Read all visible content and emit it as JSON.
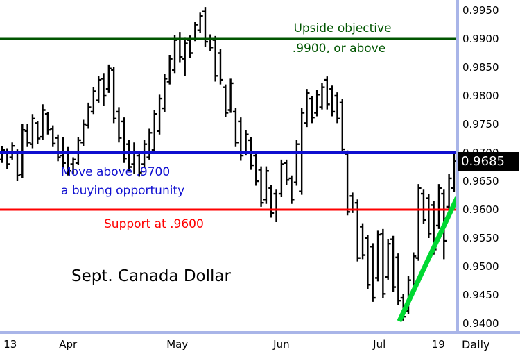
{
  "chart_data": {
    "type": "ohlc_bar",
    "title": "Sept. Canada Dollar",
    "timeframe_label": "Daily",
    "last_price": 0.9685,
    "last_price_label": "0.9685",
    "colors": {
      "bars": "#000000",
      "axis_frame": "#a9b5e8",
      "price_tag_bg": "#000000",
      "price_tag_text": "#ffffff",
      "background": "#ffffff"
    },
    "y_axis": {
      "min": 0.94,
      "max": 0.995,
      "step": 0.005,
      "tick_labels": [
        "0.9950",
        "0.9900",
        "0.9850",
        "0.9800",
        "0.9750",
        "0.9700",
        "0.9650",
        "0.9600",
        "0.9550",
        "0.9500",
        "0.9450",
        "0.9400"
      ]
    },
    "x_axis": {
      "tick_labels": [
        {
          "text": "13",
          "bar": 1.6
        },
        {
          "text": "Apr",
          "bar": 13.0
        },
        {
          "text": "May",
          "bar": 34.5
        },
        {
          "text": "Jun",
          "bar": 55.0
        },
        {
          "text": "Jul",
          "bar": 74.3
        },
        {
          "text": "19",
          "bar": 85.9
        }
      ]
    },
    "levels": [
      {
        "id": "upside-objective",
        "price": 0.99,
        "color": "#005500",
        "stroke": 3,
        "annotation": {
          "lines": [
            "Upside objective",
            ".9900, or above"
          ]
        }
      },
      {
        "id": "buy-trigger",
        "price": 0.97,
        "color": "#0f0fd0",
        "stroke": 4,
        "annotation": {
          "lines": [
            "Move above .9700",
            "a buying opportunity"
          ]
        }
      },
      {
        "id": "support",
        "price": 0.96,
        "color": "#ff0000",
        "stroke": 3,
        "annotation": {
          "lines": [
            "Support at .9600"
          ]
        }
      }
    ],
    "trend_line": {
      "from_bar": 78.2,
      "from_price": 0.9404,
      "to_bar": 89.6,
      "to_price": 0.9621,
      "color": "#00d832",
      "stroke": 7
    },
    "bars": [
      [
        0.9712,
        0.9682,
        0.9688,
        0.9705
      ],
      [
        0.9708,
        0.9672,
        0.97,
        0.968
      ],
      [
        0.9718,
        0.9688,
        0.9692,
        0.9712
      ],
      [
        0.9706,
        0.965,
        0.97,
        0.966
      ],
      [
        0.975,
        0.9655,
        0.9662,
        0.974
      ],
      [
        0.975,
        0.971,
        0.9738,
        0.9718
      ],
      [
        0.9768,
        0.9708,
        0.9715,
        0.976
      ],
      [
        0.9755,
        0.9715,
        0.9752,
        0.9725
      ],
      [
        0.9785,
        0.9722,
        0.9728,
        0.9775
      ],
      [
        0.9772,
        0.9732,
        0.9768,
        0.974
      ],
      [
        0.9748,
        0.971,
        0.9742,
        0.9716
      ],
      [
        0.9732,
        0.9685,
        0.9726,
        0.9692
      ],
      [
        0.9728,
        0.9675,
        0.9695,
        0.9682
      ],
      [
        0.971,
        0.966,
        0.97,
        0.9668
      ],
      [
        0.9692,
        0.9662,
        0.968,
        0.9688
      ],
      [
        0.9728,
        0.9678,
        0.9682,
        0.9722
      ],
      [
        0.9758,
        0.9712,
        0.9718,
        0.975
      ],
      [
        0.9788,
        0.9742,
        0.9748,
        0.978
      ],
      [
        0.9815,
        0.9768,
        0.9772,
        0.9808
      ],
      [
        0.9835,
        0.9788,
        0.9792,
        0.9828
      ],
      [
        0.984,
        0.9782,
        0.983,
        0.98
      ],
      [
        0.9855,
        0.9805,
        0.9812,
        0.9848
      ],
      [
        0.985,
        0.9752,
        0.9845,
        0.976
      ],
      [
        0.978,
        0.9718,
        0.9772,
        0.9726
      ],
      [
        0.9762,
        0.9682,
        0.9755,
        0.969
      ],
      [
        0.9722,
        0.9668,
        0.9715,
        0.9675
      ],
      [
        0.9718,
        0.9663,
        0.968,
        0.97
      ],
      [
        0.97,
        0.9658,
        0.9695,
        0.9665
      ],
      [
        0.9722,
        0.9675,
        0.968,
        0.9715
      ],
      [
        0.9742,
        0.9688,
        0.9692,
        0.9735
      ],
      [
        0.9775,
        0.97,
        0.9705,
        0.9768
      ],
      [
        0.9802,
        0.9732,
        0.9738,
        0.9795
      ],
      [
        0.9838,
        0.9772,
        0.9778,
        0.983
      ],
      [
        0.9872,
        0.982,
        0.9825,
        0.9865
      ],
      [
        0.9907,
        0.984,
        0.9845,
        0.9898
      ],
      [
        0.9912,
        0.9858,
        0.99,
        0.9868
      ],
      [
        0.9902,
        0.9835,
        0.9865,
        0.9892
      ],
      [
        0.9906,
        0.9866,
        0.9898,
        0.9875
      ],
      [
        0.993,
        0.9896,
        0.99,
        0.9925
      ],
      [
        0.9946,
        0.991,
        0.9915,
        0.994
      ],
      [
        0.9956,
        0.9886,
        0.9948,
        0.9895
      ],
      [
        0.9908,
        0.9878,
        0.99,
        0.9885
      ],
      [
        0.9905,
        0.9825,
        0.9898,
        0.9835
      ],
      [
        0.9882,
        0.982,
        0.9875,
        0.9828
      ],
      [
        0.982,
        0.9763,
        0.9815,
        0.977
      ],
      [
        0.983,
        0.977,
        0.9775,
        0.9822
      ],
      [
        0.9778,
        0.971,
        0.9772,
        0.9718
      ],
      [
        0.9762,
        0.9686,
        0.9755,
        0.9695
      ],
      [
        0.974,
        0.9695,
        0.97,
        0.9732
      ],
      [
        0.9728,
        0.967,
        0.9722,
        0.9678
      ],
      [
        0.97,
        0.9642,
        0.9695,
        0.965
      ],
      [
        0.9676,
        0.9605,
        0.967,
        0.9612
      ],
      [
        0.9676,
        0.961,
        0.9618,
        0.9668
      ],
      [
        0.9643,
        0.9586,
        0.9638,
        0.9594
      ],
      [
        0.9635,
        0.9578,
        0.9628,
        0.96
      ],
      [
        0.9688,
        0.9622,
        0.9628,
        0.968
      ],
      [
        0.9688,
        0.9643,
        0.9682,
        0.9652
      ],
      [
        0.966,
        0.961,
        0.9655,
        0.9618
      ],
      [
        0.9722,
        0.9642,
        0.9648,
        0.9715
      ],
      [
        0.9778,
        0.9626,
        0.9632,
        0.977
      ],
      [
        0.9812,
        0.9745,
        0.9752,
        0.9805
      ],
      [
        0.98,
        0.9752,
        0.9795,
        0.9762
      ],
      [
        0.981,
        0.9764,
        0.977,
        0.9802
      ],
      [
        0.9822,
        0.9776,
        0.978,
        0.9815
      ],
      [
        0.9834,
        0.9776,
        0.9828,
        0.9785
      ],
      [
        0.9818,
        0.9764,
        0.9812,
        0.9772
      ],
      [
        0.9806,
        0.9752,
        0.98,
        0.976
      ],
      [
        0.9794,
        0.97,
        0.9788,
        0.9706
      ],
      [
        0.9704,
        0.959,
        0.9698,
        0.9596
      ],
      [
        0.963,
        0.9594,
        0.9624,
        0.96
      ],
      [
        0.9618,
        0.9509,
        0.9612,
        0.9515
      ],
      [
        0.9576,
        0.9513,
        0.957,
        0.952
      ],
      [
        0.9556,
        0.946,
        0.955,
        0.9468
      ],
      [
        0.9541,
        0.9438,
        0.9535,
        0.9445
      ],
      [
        0.9563,
        0.9474,
        0.948,
        0.9556
      ],
      [
        0.9566,
        0.9444,
        0.9558,
        0.9452
      ],
      [
        0.9548,
        0.9477,
        0.9482,
        0.954
      ],
      [
        0.9554,
        0.9456,
        0.9548,
        0.9464
      ],
      [
        0.9523,
        0.9432,
        0.9516,
        0.944
      ],
      [
        0.9452,
        0.9405,
        0.9445,
        0.9412
      ],
      [
        0.9483,
        0.9417,
        0.9422,
        0.9476
      ],
      [
        0.9525,
        0.945,
        0.9455,
        0.9518
      ],
      [
        0.9645,
        0.951,
        0.9515,
        0.9638
      ],
      [
        0.9635,
        0.9575,
        0.9628,
        0.9582
      ],
      [
        0.9628,
        0.955,
        0.962,
        0.9558
      ],
      [
        0.9615,
        0.9521,
        0.9608,
        0.953
      ],
      [
        0.9645,
        0.9566,
        0.9572,
        0.9638
      ],
      [
        0.9635,
        0.9513,
        0.9628,
        0.9545
      ],
      [
        0.9663,
        0.9599,
        0.9605,
        0.9655
      ],
      [
        0.9698,
        0.9631,
        0.9638,
        0.9685
      ]
    ]
  }
}
